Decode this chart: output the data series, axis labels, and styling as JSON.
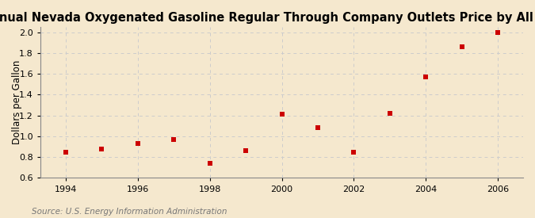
{
  "title": "Annual Nevada Oxygenated Gasoline Regular Through Company Outlets Price by All Sellers",
  "ylabel": "Dollars per Gallon",
  "source": "Source: U.S. Energy Information Administration",
  "background_color": "#f5e8ce",
  "years": [
    1994,
    1995,
    1996,
    1997,
    1998,
    1999,
    2000,
    2001,
    2002,
    2003,
    2004,
    2005,
    2006
  ],
  "values": [
    0.85,
    0.88,
    0.93,
    0.97,
    0.74,
    0.86,
    1.21,
    1.08,
    0.85,
    1.22,
    1.57,
    1.86,
    2.0
  ],
  "xlim": [
    1993.3,
    2006.7
  ],
  "ylim": [
    0.6,
    2.05
  ],
  "yticks": [
    0.6,
    0.8,
    1.0,
    1.2,
    1.4,
    1.6,
    1.8,
    2.0
  ],
  "xticks": [
    1994,
    1996,
    1998,
    2000,
    2002,
    2004,
    2006
  ],
  "marker_color": "#cc0000",
  "marker": "s",
  "marker_size": 5,
  "grid_color": "#cccccc",
  "title_fontsize": 10.5,
  "label_fontsize": 8.5,
  "tick_fontsize": 8,
  "source_fontsize": 7.5
}
